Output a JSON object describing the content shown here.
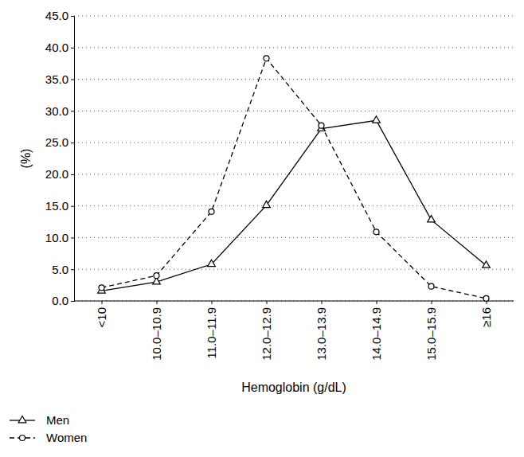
{
  "chart_data": {
    "type": "line",
    "x_label": "Hemoglobin (g/dL)",
    "y_label": "(%)",
    "categories": [
      "<10",
      "10.0–10.9",
      "11.0–11.9",
      "12.0–12.9",
      "13.0–13.9",
      "14.0–14.9",
      "15.0–15.9",
      "≥16"
    ],
    "series": [
      {
        "name": "Men",
        "color": "#000000",
        "marker": "triangle",
        "line_style": "solid",
        "values": [
          1.6,
          3.0,
          5.8,
          15.1,
          27.2,
          28.5,
          12.8,
          5.6
        ]
      },
      {
        "name": "Women",
        "color": "#000000",
        "marker": "circle",
        "line_style": "dashed",
        "values": [
          2.1,
          4.0,
          14.1,
          38.3,
          27.7,
          10.9,
          2.3,
          0.4
        ]
      }
    ],
    "ylim": [
      0,
      45
    ],
    "yticks": [
      {
        "value": 0,
        "label": "0.0"
      },
      {
        "value": 5,
        "label": "5.0"
      },
      {
        "value": 10,
        "label": "10.0"
      },
      {
        "value": 15,
        "label": "15.0"
      },
      {
        "value": 20,
        "label": "20.0"
      },
      {
        "value": 25,
        "label": "25.0"
      },
      {
        "value": 30,
        "label": "30.0"
      },
      {
        "value": 35,
        "label": "35.0"
      },
      {
        "value": 40,
        "label": "40.0"
      },
      {
        "value": 45,
        "label": "45.0"
      }
    ],
    "grid": true,
    "legend": "bottom-left"
  }
}
